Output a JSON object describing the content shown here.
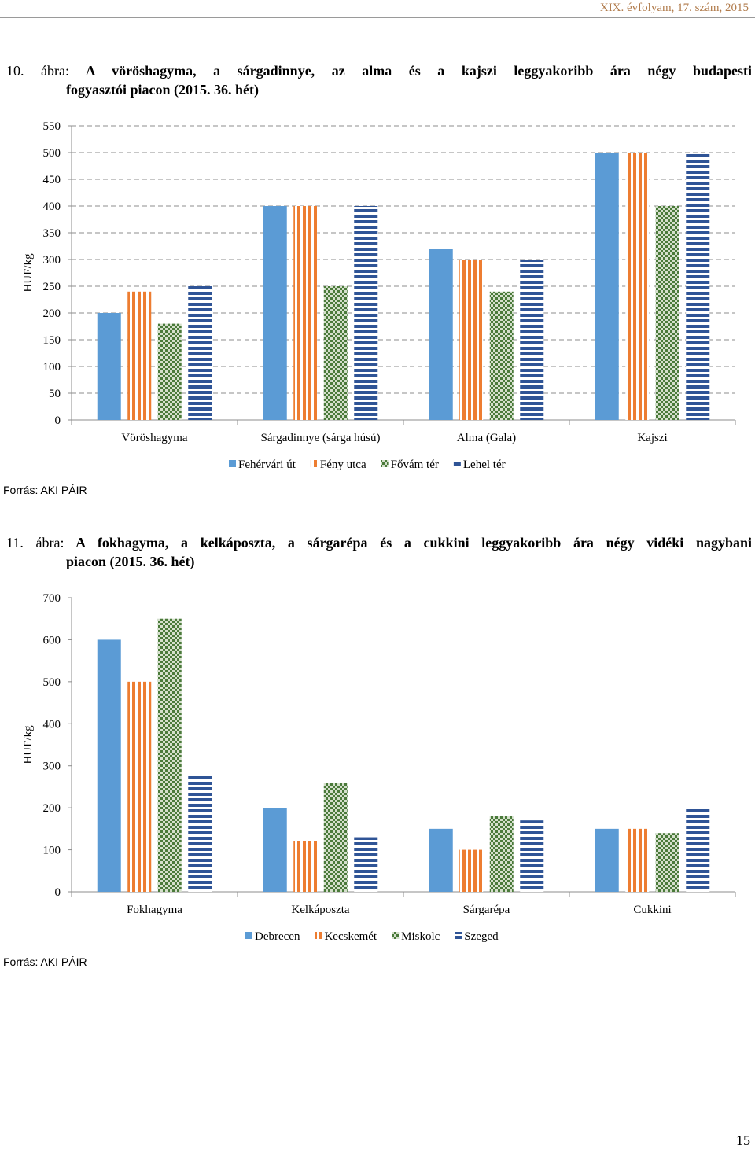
{
  "header": {
    "journal": "XIX. évfolyam, 17. szám, 2015"
  },
  "footer": {
    "page_number": "15"
  },
  "figures": [
    {
      "caption_number": "10. ábra:",
      "caption_line1": "A vöröshagyma, a sárgadinnye, az alma és a kajszi leggyakoribb ára négy budapesti",
      "caption_line2": "fogyasztói piacon (2015. 36. hét)",
      "source": "Forrás: AKI PÁIR"
    },
    {
      "caption_number": "11. ábra:",
      "caption_line1": "A fokhagyma, a kelkáposzta, a sárgarépa és a cukkini leggyakoribb ára négy vidéki nagybani",
      "caption_line2": "piacon (2015. 36. hét)",
      "source": "Forrás: AKI PÁIR"
    }
  ],
  "colors": {
    "blue": "#5b9bd5",
    "orange": "#ed7d31",
    "green": "#4a7a3a",
    "navy": "#2f5496"
  },
  "chart_data": [
    {
      "type": "bar",
      "ylabel": "HUF/kg",
      "ylim": [
        0,
        550
      ],
      "yticks": [
        0,
        50,
        100,
        150,
        200,
        250,
        300,
        350,
        400,
        450,
        500,
        550
      ],
      "gridlines": "dashed",
      "legend_position": "bottom",
      "categories": [
        "Vöröshagyma",
        "Sárgadinnye (sárga húsú)",
        "Alma (Gala)",
        "Kajszi"
      ],
      "series": [
        {
          "name": "Fehérvári út",
          "pattern": "solid",
          "values": [
            200,
            400,
            320,
            500
          ]
        },
        {
          "name": "Fény utca",
          "pattern": "vertical",
          "values": [
            240,
            400,
            300,
            500
          ]
        },
        {
          "name": "Fővám tér",
          "pattern": "checker",
          "values": [
            180,
            250,
            240,
            400
          ]
        },
        {
          "name": "Lehel tér",
          "pattern": "horizontal",
          "values": [
            250,
            400,
            300,
            500
          ]
        }
      ]
    },
    {
      "type": "bar",
      "ylabel": "HUF/kg",
      "ylim": [
        0,
        700
      ],
      "yticks": [
        0,
        100,
        200,
        300,
        400,
        500,
        600,
        700
      ],
      "gridlines": "none",
      "legend_position": "bottom",
      "categories": [
        "Fokhagyma",
        "Kelkáposzta",
        "Sárgarépa",
        "Cukkini"
      ],
      "series": [
        {
          "name": "Debrecen",
          "pattern": "solid",
          "values": [
            600,
            200,
            150,
            150
          ]
        },
        {
          "name": "Kecskemét",
          "pattern": "vertical",
          "values": [
            500,
            120,
            100,
            150
          ]
        },
        {
          "name": "Miskolc",
          "pattern": "checker",
          "values": [
            650,
            260,
            180,
            140
          ]
        },
        {
          "name": "Szeged",
          "pattern": "horizontal",
          "values": [
            280,
            130,
            170,
            200
          ]
        }
      ]
    }
  ]
}
